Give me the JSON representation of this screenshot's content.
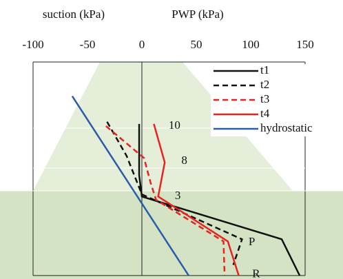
{
  "chart_data": {
    "type": "line",
    "x_label_left": "suction (kPa)",
    "x_label_right": "PWP (kPa)",
    "xlim": [
      -100,
      150
    ],
    "xticks": [
      -100,
      -50,
      0,
      50,
      100,
      150
    ],
    "ylim": [
      0,
      10
    ],
    "series": [
      {
        "name": "t1",
        "color": "#111111",
        "dash": false,
        "x": [
          -2.5,
          -2.5,
          0,
          128.5,
          145
        ],
        "values": [
          7.1,
          4.7,
          3.7,
          1.7,
          0
        ]
      },
      {
        "name": "t2",
        "color": "#111111",
        "dash": true,
        "x": [
          -32,
          -14,
          0,
          92,
          84
        ],
        "values": [
          7.2,
          5.6,
          3.8,
          1.7,
          0.5
        ]
      },
      {
        "name": "t3",
        "color": "#e8221f",
        "dash": true,
        "x": [
          -33,
          2,
          8,
          13,
          75,
          76
        ],
        "values": [
          7.0,
          5.5,
          4.35,
          3.55,
          1.6,
          0
        ]
      },
      {
        "name": "t4",
        "color": "#e8221f",
        "dash": false,
        "x": [
          11,
          21,
          15,
          79,
          89
        ],
        "values": [
          7.1,
          5.3,
          3.7,
          1.6,
          0
        ]
      },
      {
        "name": "hydrostatic",
        "color": "#2a5caa",
        "dash": false,
        "x": [
          -64,
          43
        ],
        "values": [
          8.4,
          0
        ]
      }
    ],
    "annotations": [
      {
        "text": "10",
        "x": 30,
        "y": 7.0
      },
      {
        "text": "8",
        "x": 39,
        "y": 5.35
      },
      {
        "text": "3",
        "x": 33,
        "y": 3.7
      },
      {
        "text": "P",
        "x": 101,
        "y": 1.55
      },
      {
        "text": "R",
        "x": 105,
        "y": 0.05
      }
    ]
  }
}
